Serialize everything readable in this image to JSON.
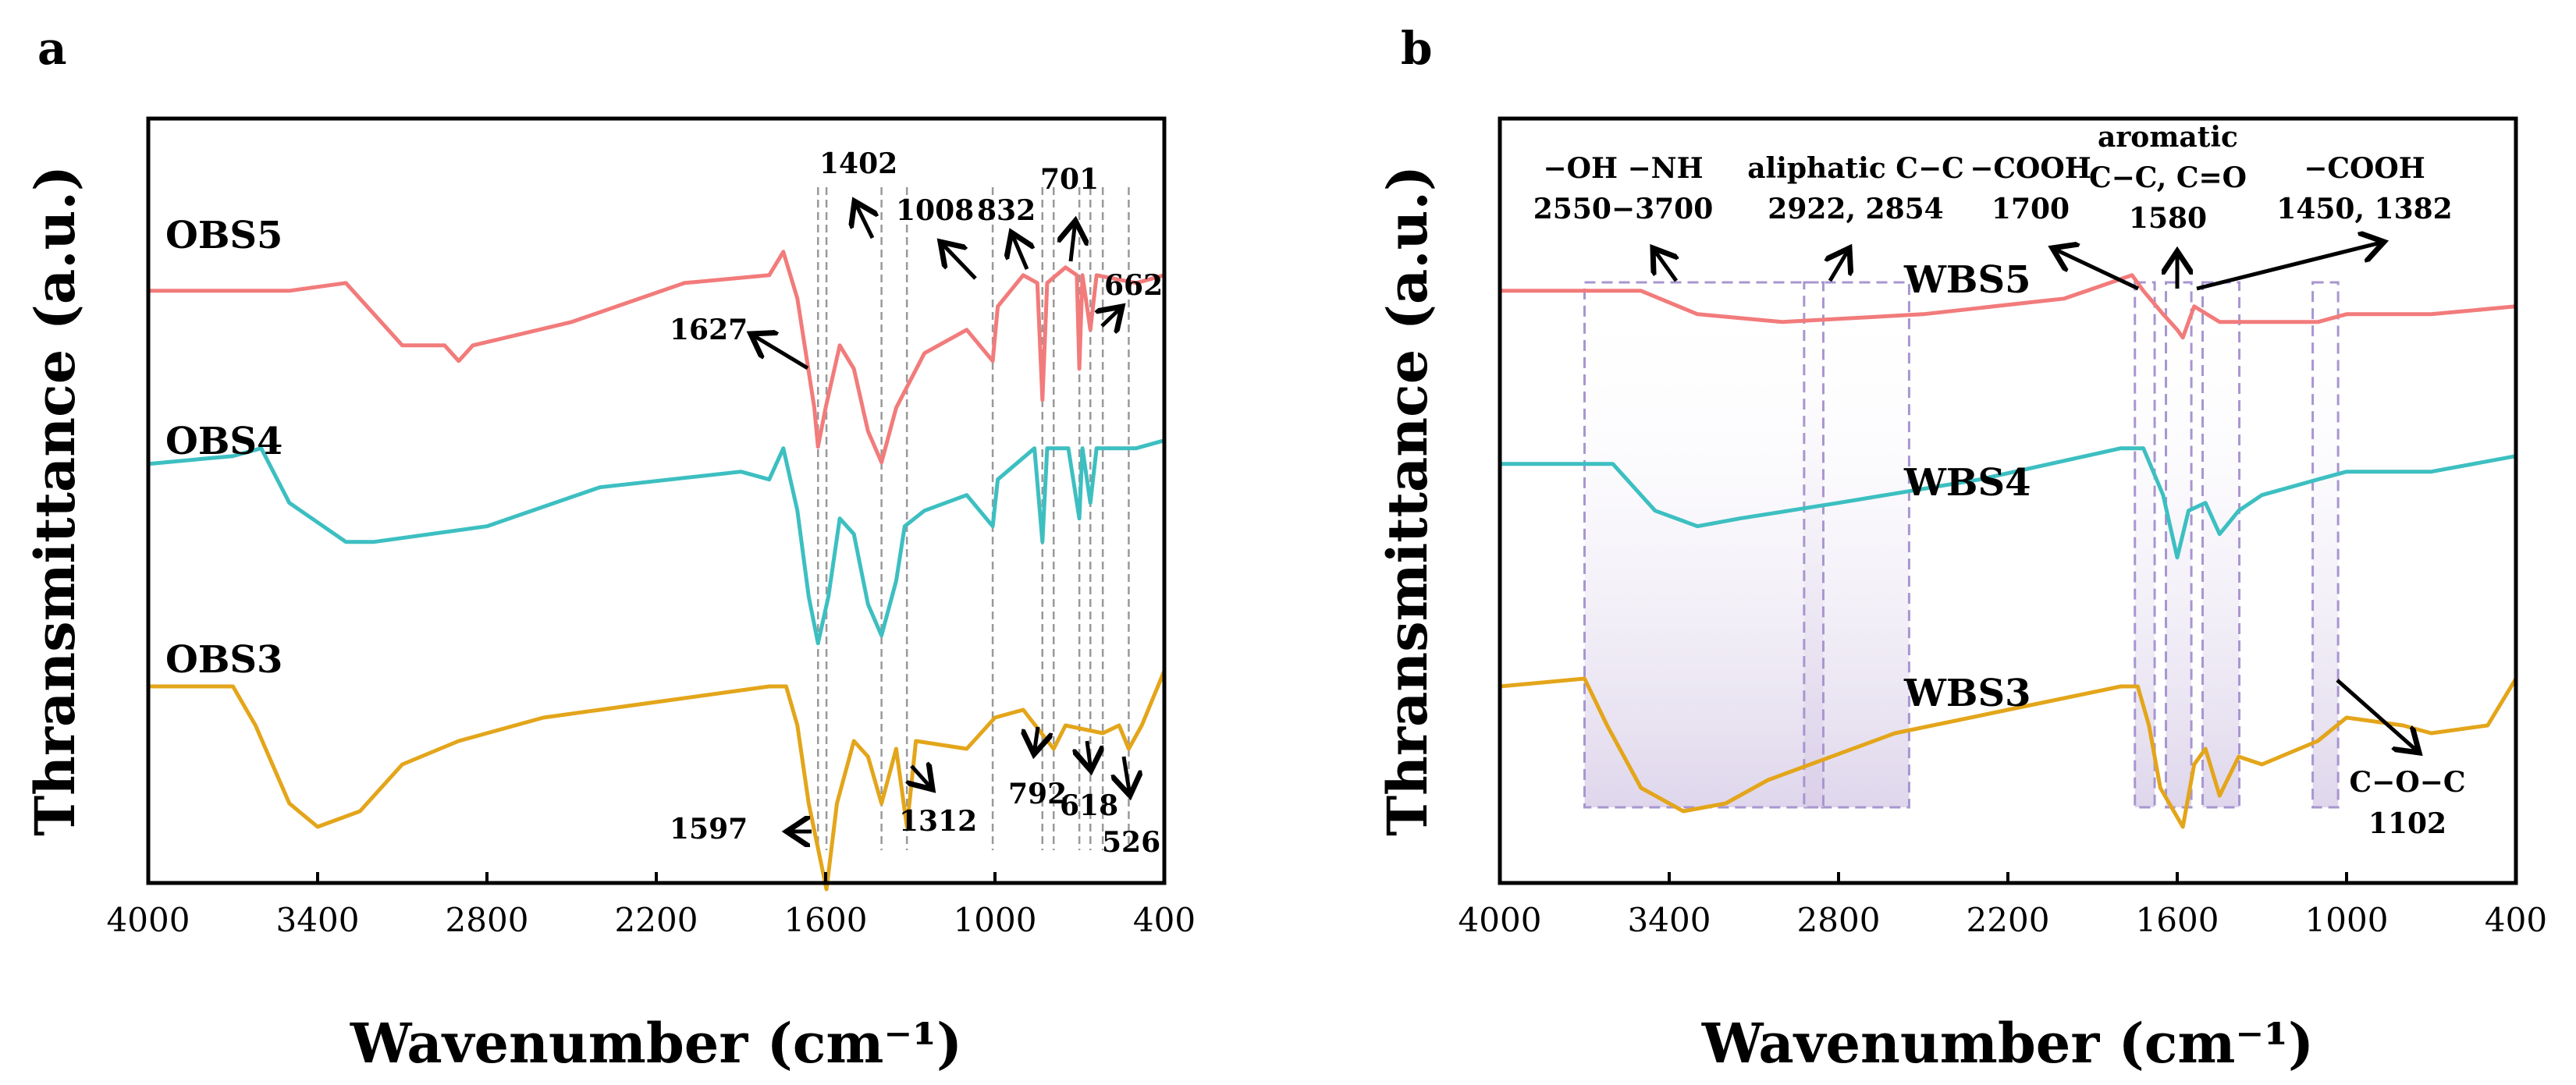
{
  "chart_data": [
    {
      "type": "line",
      "panel": "a",
      "xlabel": "Wavenumber (cm⁻¹)",
      "ylabel": "Thransmittance (a.u.)",
      "xlim": [
        4000,
        400
      ],
      "x_ticks": [
        "4000",
        "3400",
        "2800",
        "2200",
        "1600",
        "1000",
        "400"
      ],
      "series": [
        {
          "name": "OBS5",
          "color": "#f27b7b",
          "offset": 0.8,
          "points": [
            [
              4000,
              0
            ],
            [
              3500,
              0
            ],
            [
              3300,
              0.01
            ],
            [
              3100,
              -0.07
            ],
            [
              2950,
              -0.07
            ],
            [
              2900,
              -0.09
            ],
            [
              2850,
              -0.07
            ],
            [
              2500,
              -0.04
            ],
            [
              2100,
              0.01
            ],
            [
              1800,
              0.02
            ],
            [
              1750,
              0.05
            ],
            [
              1700,
              -0.01
            ],
            [
              1640,
              -0.15
            ],
            [
              1627,
              -0.2
            ],
            [
              1600,
              -0.15
            ],
            [
              1550,
              -0.07
            ],
            [
              1500,
              -0.1
            ],
            [
              1450,
              -0.18
            ],
            [
              1402,
              -0.22
            ],
            [
              1350,
              -0.15
            ],
            [
              1250,
              -0.08
            ],
            [
              1100,
              -0.05
            ],
            [
              1008,
              -0.09
            ],
            [
              990,
              -0.02
            ],
            [
              900,
              0.02
            ],
            [
              850,
              0.01
            ],
            [
              832,
              -0.14
            ],
            [
              815,
              0.01
            ],
            [
              750,
              0.03
            ],
            [
              710,
              0.02
            ],
            [
              701,
              -0.1
            ],
            [
              690,
              0.02
            ],
            [
              662,
              -0.05
            ],
            [
              640,
              0.02
            ],
            [
              500,
              0.01
            ],
            [
              400,
              0.02
            ]
          ]
        },
        {
          "name": "OBS4",
          "color": "#3dbfc1",
          "offset": 0.45,
          "points": [
            [
              4000,
              0
            ],
            [
              3700,
              0.01
            ],
            [
              3600,
              0.02
            ],
            [
              3500,
              -0.05
            ],
            [
              3300,
              -0.1
            ],
            [
              3200,
              -0.1
            ],
            [
              3000,
              -0.09
            ],
            [
              2800,
              -0.08
            ],
            [
              2400,
              -0.03
            ],
            [
              1900,
              -0.01
            ],
            [
              1800,
              -0.02
            ],
            [
              1750,
              0.02
            ],
            [
              1700,
              -0.06
            ],
            [
              1660,
              -0.17
            ],
            [
              1627,
              -0.23
            ],
            [
              1590,
              -0.17
            ],
            [
              1550,
              -0.07
            ],
            [
              1500,
              -0.09
            ],
            [
              1450,
              -0.18
            ],
            [
              1402,
              -0.22
            ],
            [
              1350,
              -0.15
            ],
            [
              1320,
              -0.08
            ],
            [
              1250,
              -0.06
            ],
            [
              1100,
              -0.04
            ],
            [
              1008,
              -0.08
            ],
            [
              990,
              -0.02
            ],
            [
              860,
              0.02
            ],
            [
              832,
              -0.1
            ],
            [
              815,
              0.02
            ],
            [
              740,
              0.02
            ],
            [
              701,
              -0.07
            ],
            [
              690,
              0.02
            ],
            [
              662,
              -0.05
            ],
            [
              640,
              0.02
            ],
            [
              500,
              0.02
            ],
            [
              400,
              0.03
            ]
          ]
        },
        {
          "name": "OBS3",
          "color": "#e3a51a",
          "offset": 0.0,
          "points": [
            [
              4000,
              0
            ],
            [
              3700,
              0
            ],
            [
              3620,
              -0.05
            ],
            [
              3500,
              -0.15
            ],
            [
              3400,
              -0.18
            ],
            [
              3250,
              -0.16
            ],
            [
              3100,
              -0.1
            ],
            [
              2900,
              -0.07
            ],
            [
              2600,
              -0.04
            ],
            [
              2200,
              -0.02
            ],
            [
              1800,
              0.0
            ],
            [
              1740,
              0.0
            ],
            [
              1700,
              -0.05
            ],
            [
              1660,
              -0.15
            ],
            [
              1597,
              -0.26
            ],
            [
              1560,
              -0.15
            ],
            [
              1500,
              -0.07
            ],
            [
              1450,
              -0.09
            ],
            [
              1402,
              -0.15
            ],
            [
              1350,
              -0.08
            ],
            [
              1312,
              -0.18
            ],
            [
              1280,
              -0.07
            ],
            [
              1100,
              -0.08
            ],
            [
              1000,
              -0.04
            ],
            [
              900,
              -0.03
            ],
            [
              792,
              -0.08
            ],
            [
              750,
              -0.05
            ],
            [
              618,
              -0.06
            ],
            [
              560,
              -0.05
            ],
            [
              526,
              -0.08
            ],
            [
              480,
              -0.05
            ],
            [
              400,
              0.02
            ]
          ]
        }
      ],
      "series_labels": [
        "OBS5",
        "OBS4",
        "OBS3"
      ],
      "peak_lines": [
        1627,
        1597,
        1402,
        1312,
        1008,
        832,
        792,
        701,
        662,
        618,
        526
      ],
      "annotations": [
        "1402",
        "1008",
        "832",
        "701",
        "662",
        "1627",
        "1597",
        "1312",
        "792",
        "618",
        "526"
      ]
    },
    {
      "type": "line",
      "panel": "b",
      "xlabel": "Wavenumber (cm⁻¹)",
      "ylabel": "Thransmittance (a.u.)",
      "xlim": [
        4000,
        400
      ],
      "x_ticks": [
        "4000",
        "3400",
        "2800",
        "2200",
        "1600",
        "1000",
        "400"
      ],
      "series": [
        {
          "name": "WBS5",
          "color": "#f27b7b",
          "offset": 0.8,
          "points": [
            [
              4000,
              0
            ],
            [
              3500,
              0
            ],
            [
              3300,
              -0.03
            ],
            [
              3000,
              -0.04
            ],
            [
              2500,
              -0.03
            ],
            [
              2000,
              -0.01
            ],
            [
              1760,
              0.02
            ],
            [
              1720,
              0.0
            ],
            [
              1650,
              -0.03
            ],
            [
              1600,
              -0.05
            ],
            [
              1580,
              -0.06
            ],
            [
              1540,
              -0.02
            ],
            [
              1450,
              -0.04
            ],
            [
              1382,
              -0.04
            ],
            [
              1300,
              -0.04
            ],
            [
              1102,
              -0.04
            ],
            [
              1000,
              -0.03
            ],
            [
              700,
              -0.03
            ],
            [
              400,
              -0.02
            ]
          ]
        },
        {
          "name": "WBS4",
          "color": "#3dbfc1",
          "offset": 0.45,
          "points": [
            [
              4000,
              0
            ],
            [
              3600,
              0
            ],
            [
              3450,
              -0.06
            ],
            [
              3300,
              -0.08
            ],
            [
              3150,
              -0.07
            ],
            [
              2800,
              -0.05
            ],
            [
              2300,
              -0.02
            ],
            [
              1800,
              0.02
            ],
            [
              1720,
              0.02
            ],
            [
              1650,
              -0.04
            ],
            [
              1600,
              -0.12
            ],
            [
              1560,
              -0.06
            ],
            [
              1500,
              -0.05
            ],
            [
              1450,
              -0.09
            ],
            [
              1382,
              -0.06
            ],
            [
              1300,
              -0.04
            ],
            [
              1102,
              -0.02
            ],
            [
              1000,
              -0.01
            ],
            [
              700,
              -0.01
            ],
            [
              400,
              0.01
            ]
          ]
        },
        {
          "name": "WBS3",
          "color": "#e3a51a",
          "offset": 0.0,
          "points": [
            [
              4000,
              0
            ],
            [
              3700,
              0.01
            ],
            [
              3620,
              -0.05
            ],
            [
              3500,
              -0.13
            ],
            [
              3350,
              -0.16
            ],
            [
              3200,
              -0.15
            ],
            [
              3050,
              -0.12
            ],
            [
              2900,
              -0.1
            ],
            [
              2600,
              -0.06
            ],
            [
              2200,
              -0.03
            ],
            [
              1800,
              0.0
            ],
            [
              1740,
              0.0
            ],
            [
              1700,
              -0.05
            ],
            [
              1660,
              -0.13
            ],
            [
              1580,
              -0.18
            ],
            [
              1540,
              -0.1
            ],
            [
              1500,
              -0.08
            ],
            [
              1450,
              -0.14
            ],
            [
              1382,
              -0.09
            ],
            [
              1300,
              -0.1
            ],
            [
              1102,
              -0.07
            ],
            [
              1000,
              -0.04
            ],
            [
              800,
              -0.05
            ],
            [
              700,
              -0.06
            ],
            [
              500,
              -0.05
            ],
            [
              400,
              0.01
            ]
          ]
        }
      ],
      "series_labels": [
        "WBS5",
        "WBS4",
        "WBS3"
      ],
      "regions": [
        [
          3700,
          2550
        ],
        [
          2922,
          2854
        ],
        [
          1750,
          1680
        ],
        [
          1640,
          1550
        ],
        [
          1510,
          1380
        ],
        [
          1120,
          1030
        ]
      ],
      "annotations": {
        "oh_nh": "−OH −NH",
        "oh_nh_range": "2550−3700",
        "aliphatic": "aliphatic C−C",
        "aliphatic_vals": "2922, 2854",
        "cooh_1700": "−COOH",
        "cooh_1700_val": "1700",
        "aromatic": "aromatic",
        "aromatic_bonds": "C−C, C=O",
        "aromatic_val": "1580",
        "cooh_1450": "−COOH",
        "cooh_1450_vals": "1450, 1382",
        "coc": "C−O−C",
        "coc_val": "1102"
      }
    }
  ],
  "panel_letters": {
    "a": "a",
    "b": "b"
  }
}
